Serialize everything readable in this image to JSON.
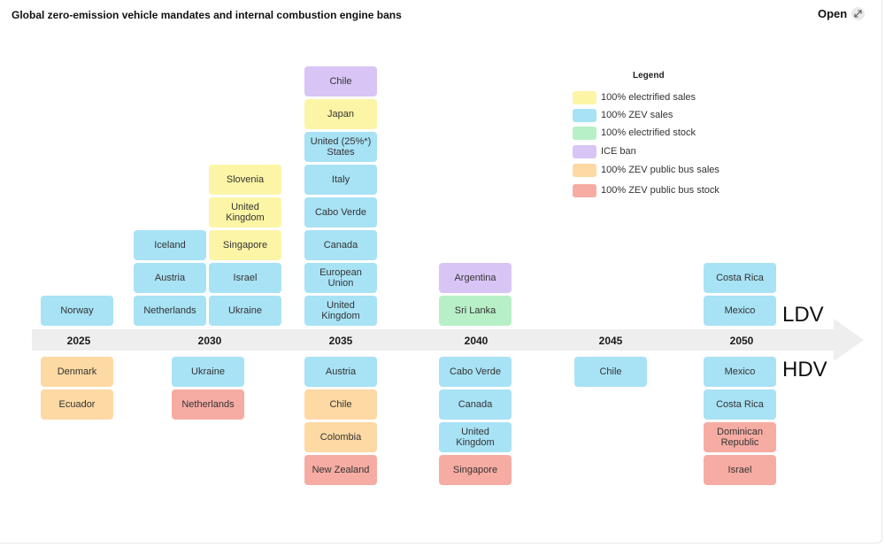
{
  "header": {
    "title": "Global zero-emission vehicle mandates and internal combustion engine bans",
    "open_label": "Open"
  },
  "colors": {
    "electrified_sales": "#fdf5a6",
    "zev_sales": "#a8e2f5",
    "electrified_stock": "#b7f0c7",
    "ice_ban": "#d8c5f6",
    "zev_bus_sales": "#fdd9a4",
    "zev_bus_stock": "#f6aca3",
    "timeline": "#eeeeee"
  },
  "legend": {
    "title": "Legend",
    "items": [
      {
        "key": "electrified_sales",
        "label": "100% electrified sales"
      },
      {
        "key": "zev_sales",
        "label": "100% ZEV sales"
      },
      {
        "key": "electrified_stock",
        "label": "100% electrified stock"
      },
      {
        "key": "ice_ban",
        "label": "ICE ban"
      },
      {
        "key": "zev_bus_sales",
        "label": "100% ZEV public bus sales"
      },
      {
        "key": "zev_bus_stock",
        "label": "100% ZEV public bus stock"
      }
    ]
  },
  "timeline": {
    "years": [
      "2025",
      "2030",
      "2035",
      "2040",
      "2045",
      "2050"
    ],
    "ldv_label": "LDV",
    "hdv_label": "HDV"
  },
  "ldv": {
    "y2025": [
      {
        "label": "Norway",
        "cat": "zev_sales"
      }
    ],
    "y2030a": [
      {
        "label": "Netherlands",
        "cat": "zev_sales"
      },
      {
        "label": "Austria",
        "cat": "zev_sales"
      },
      {
        "label": "Iceland",
        "cat": "zev_sales"
      }
    ],
    "y2030b": [
      {
        "label": "Ukraine",
        "cat": "zev_sales"
      },
      {
        "label": "Israel",
        "cat": "zev_sales"
      },
      {
        "label": "Singapore",
        "cat": "electrified_sales"
      },
      {
        "label": "United Kingdom",
        "cat": "electrified_sales"
      },
      {
        "label": "Slovenia",
        "cat": "electrified_sales"
      }
    ],
    "y2035": [
      {
        "label": "United Kingdom",
        "cat": "zev_sales"
      },
      {
        "label": "European Union",
        "cat": "zev_sales"
      },
      {
        "label": "Canada",
        "cat": "zev_sales"
      },
      {
        "label": "Cabo Verde",
        "cat": "zev_sales"
      },
      {
        "label": "Italy",
        "cat": "zev_sales"
      },
      {
        "label": "United (25%*) States",
        "cat": "zev_sales"
      },
      {
        "label": "Japan",
        "cat": "electrified_sales"
      },
      {
        "label": "Chile",
        "cat": "ice_ban"
      }
    ],
    "y2040": [
      {
        "label": "Sri Lanka",
        "cat": "electrified_stock"
      },
      {
        "label": "Argentina",
        "cat": "ice_ban"
      }
    ],
    "y2050": [
      {
        "label": "Mexico",
        "cat": "zev_sales"
      },
      {
        "label": "Costa Rica",
        "cat": "zev_sales"
      }
    ]
  },
  "hdv": {
    "y2025": [
      {
        "label": "Denmark",
        "cat": "zev_bus_sales"
      },
      {
        "label": "Ecuador",
        "cat": "zev_bus_sales"
      }
    ],
    "y2030": [
      {
        "label": "Ukraine",
        "cat": "zev_sales"
      },
      {
        "label": "Netherlands",
        "cat": "zev_bus_stock"
      }
    ],
    "y2035": [
      {
        "label": "Austria",
        "cat": "zev_sales"
      },
      {
        "label": "Chile",
        "cat": "zev_bus_sales"
      },
      {
        "label": "Colombia",
        "cat": "zev_bus_sales"
      },
      {
        "label": "New Zealand",
        "cat": "zev_bus_stock"
      }
    ],
    "y2040": [
      {
        "label": "Cabo Verde",
        "cat": "zev_sales"
      },
      {
        "label": "Canada",
        "cat": "zev_sales"
      },
      {
        "label": "United Kingdom",
        "cat": "zev_sales"
      },
      {
        "label": "Singapore",
        "cat": "zev_bus_stock"
      }
    ],
    "y2045": [
      {
        "label": "Chile",
        "cat": "zev_sales"
      }
    ],
    "y2050": [
      {
        "label": "Mexico",
        "cat": "zev_sales"
      },
      {
        "label": "Costa Rica",
        "cat": "zev_sales"
      },
      {
        "label": "Dominican Republic",
        "cat": "zev_bus_stock"
      },
      {
        "label": "Israel",
        "cat": "zev_bus_stock"
      }
    ]
  }
}
